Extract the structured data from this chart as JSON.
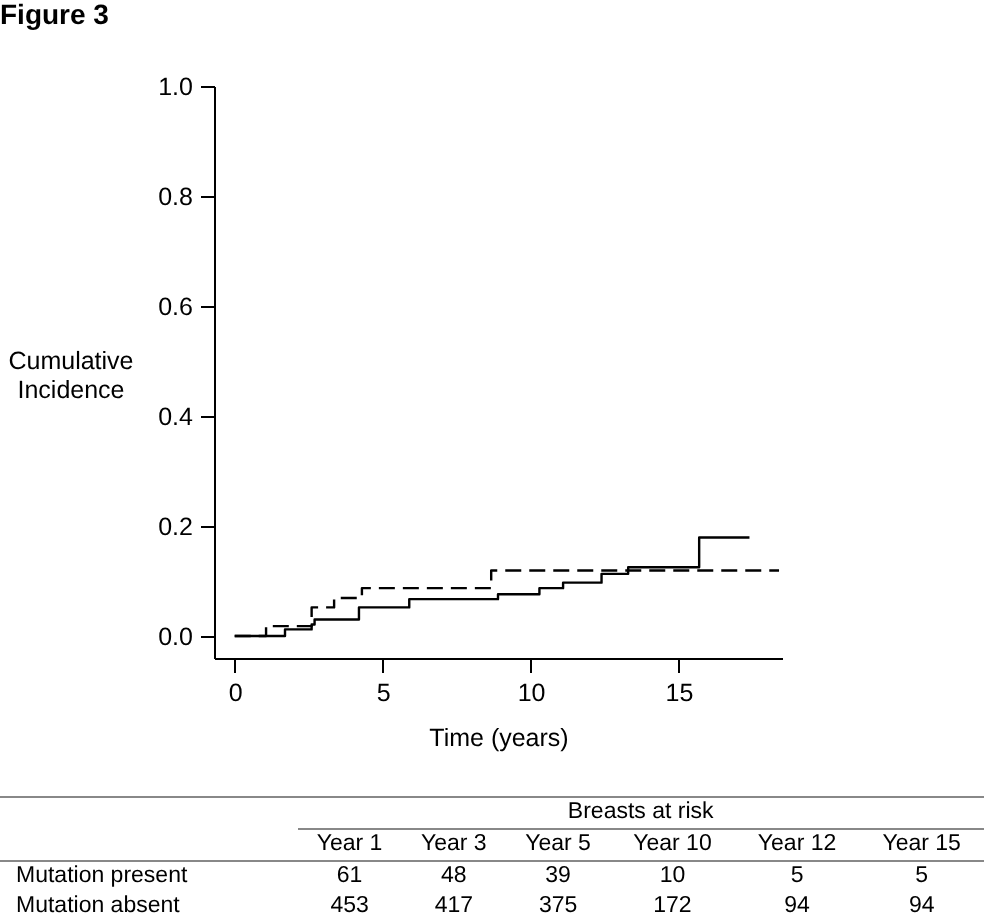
{
  "chart_data": {
    "type": "step",
    "title": "Figure 3",
    "xlabel": "Time (years)",
    "ylabel": "Cumulative Incidence",
    "xlim": [
      -0.7,
      18.5
    ],
    "xticks": [
      0,
      5,
      10,
      15
    ],
    "ylim": [
      -0.04,
      1.0
    ],
    "yticks": [
      {
        "value": 0,
        "label": "0.0"
      },
      {
        "value": 0.2,
        "label": "0.2"
      },
      {
        "value": 0.4,
        "label": "0.4"
      },
      {
        "value": 0.6,
        "label": "0.6"
      },
      {
        "value": 0.8,
        "label": "0.8"
      },
      {
        "value": 1.0,
        "label": "1.0"
      }
    ],
    "grid": false,
    "series": [
      {
        "color": "#000000",
        "line_style": "dashed",
        "x": [
          0,
          1.06,
          2.6,
          3.36,
          4.3,
          8.67,
          18.4
        ],
        "values": [
          0,
          0.018,
          0.052,
          0.069,
          0.087,
          0.119,
          0.119
        ]
      },
      {
        "color": "#000000",
        "line_style": "solid",
        "x": [
          0,
          0.95,
          1.7,
          2.6,
          2.7,
          4.2,
          5.9,
          7.6,
          8.9,
          10.3,
          11.1,
          12.4,
          13.3,
          15.7,
          17.4
        ],
        "values": [
          0,
          0,
          0.012,
          0.021,
          0.03,
          0.052,
          0.067,
          0.067,
          0.076,
          0.087,
          0.097,
          0.113,
          0.125,
          0.179,
          0.179
        ]
      }
    ],
    "annotations": [
      "Breasts at risk",
      "Year 1",
      "Year 3",
      "Year 5",
      "Year 10",
      "Year 12",
      "Year 15",
      "Mutation present",
      "61",
      "48",
      "39",
      "10",
      "5",
      "5",
      "Mutation absent",
      "453",
      "417",
      "375",
      "172",
      "94",
      "94"
    ]
  }
}
